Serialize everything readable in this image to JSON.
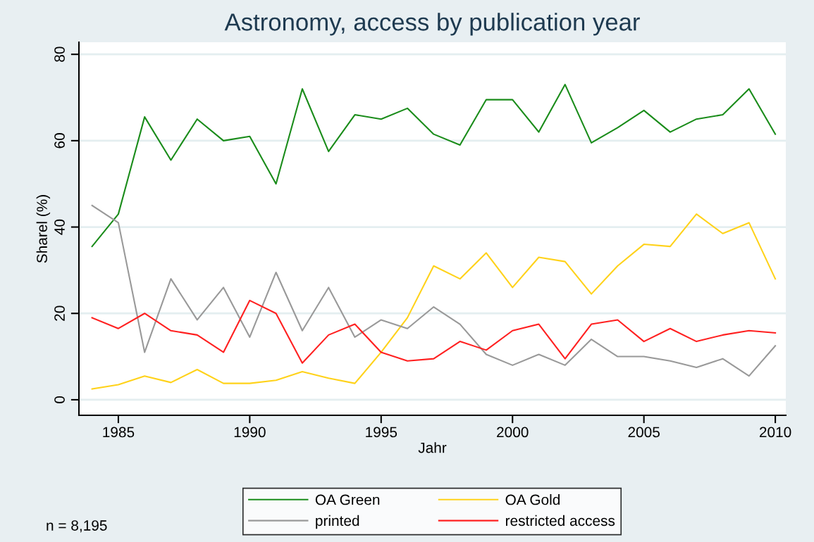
{
  "chart_data": {
    "type": "line",
    "title": "Astronomy, access by publication year",
    "xlabel": "Jahr",
    "ylabel": "Sharel (%)",
    "x": [
      1984,
      1985,
      1986,
      1987,
      1988,
      1989,
      1990,
      1991,
      1992,
      1993,
      1994,
      1995,
      1996,
      1997,
      1998,
      1999,
      2000,
      2001,
      2002,
      2003,
      2004,
      2005,
      2006,
      2007,
      2008,
      2009,
      2010
    ],
    "series": [
      {
        "name": "OA Green",
        "color": "#1a8c1a",
        "values": [
          35.5,
          43,
          65.5,
          55.5,
          65,
          60,
          61,
          50,
          72,
          57.5,
          66,
          65,
          67.5,
          61.5,
          59,
          69.5,
          69.5,
          62,
          73,
          59.5,
          63,
          67,
          62,
          65,
          66,
          72,
          61.5
        ]
      },
      {
        "name": "OA Gold",
        "color": "#ffd21a",
        "values": [
          2.5,
          3.5,
          5.5,
          4,
          7,
          3.8,
          3.8,
          4.5,
          6.5,
          5,
          3.8,
          11,
          19,
          31,
          28,
          34,
          26,
          33,
          32,
          24.5,
          31,
          36,
          35.5,
          43,
          38.5,
          41,
          28
        ]
      },
      {
        "name": "printed",
        "color": "#999999",
        "values": [
          45,
          41,
          11,
          28,
          18.5,
          26,
          14.5,
          29.5,
          16,
          26,
          14.5,
          18.5,
          16.5,
          21.5,
          17.5,
          10.5,
          8,
          10.5,
          8,
          14,
          10,
          10,
          9,
          7.5,
          9.5,
          5.5,
          12.5
        ]
      },
      {
        "name": "restricted access",
        "color": "#ff2020",
        "values": [
          19,
          16.5,
          20,
          16,
          15,
          11,
          23,
          20,
          8.5,
          15,
          17.5,
          11,
          9,
          9.5,
          13.5,
          11.5,
          16,
          17.5,
          9.5,
          17.5,
          18.5,
          13.5,
          16.5,
          13.5,
          15,
          16,
          15.5
        ]
      }
    ],
    "xlim": [
      1983.5,
      2010.4
    ],
    "ylim": [
      -3.6,
      82.8
    ],
    "xticks": [
      1985,
      1990,
      1995,
      2000,
      2005,
      2010
    ],
    "yticks": [
      0,
      20,
      40,
      60,
      80
    ],
    "grid": "y",
    "legend": "bottom",
    "marker": "none",
    "line_style": "solid",
    "annotations": [
      "n = 8,195"
    ]
  }
}
